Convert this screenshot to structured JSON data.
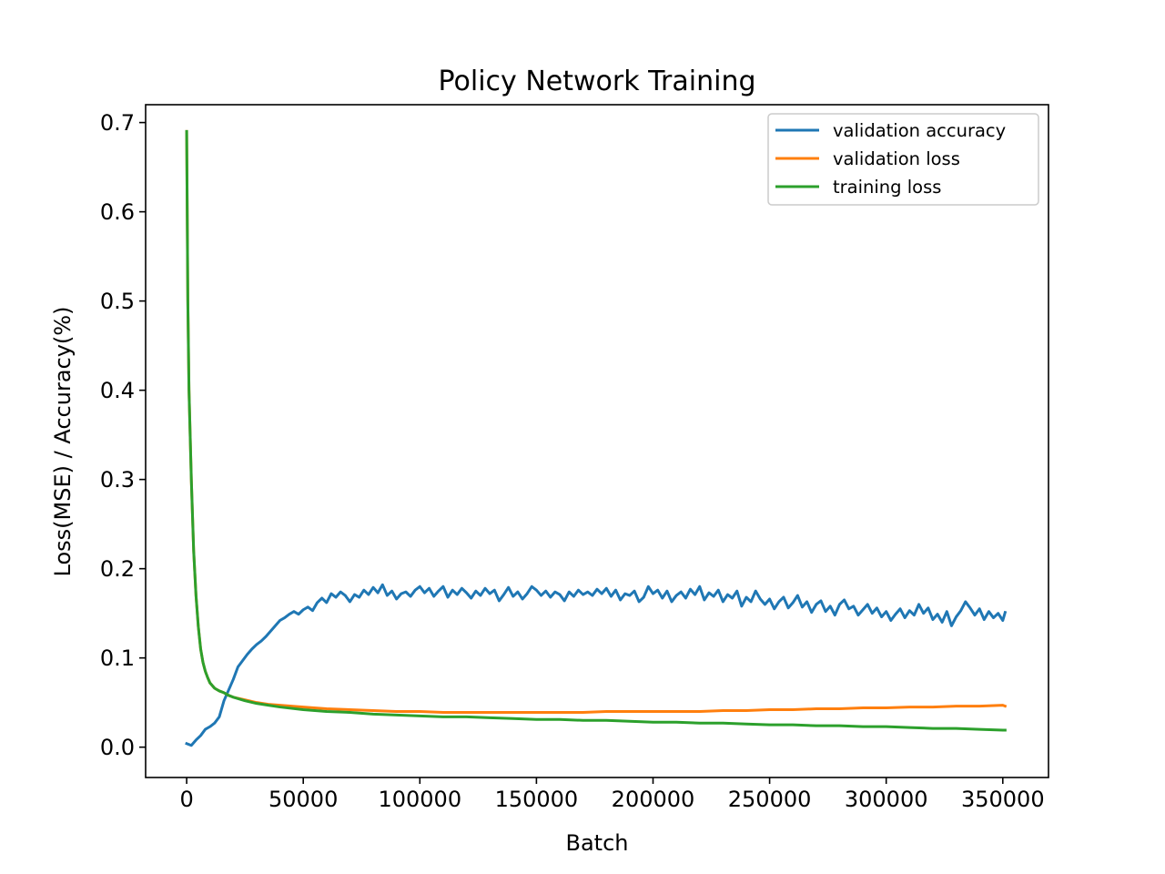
{
  "chart_data": {
    "type": "line",
    "title": "Policy Network Training",
    "xlabel": "Batch",
    "ylabel": "Loss(MSE) / Accuracy(%)",
    "xlim": [
      -17600,
      369600
    ],
    "ylim": [
      -0.034,
      0.72
    ],
    "xticks": [
      0,
      50000,
      100000,
      150000,
      200000,
      250000,
      300000,
      350000
    ],
    "xtick_labels": [
      "0",
      "50000",
      "100000",
      "150000",
      "200000",
      "250000",
      "300000",
      "350000"
    ],
    "yticks": [
      0.0,
      0.1,
      0.2,
      0.3,
      0.4,
      0.5,
      0.6,
      0.7
    ],
    "ytick_labels": [
      "0.0",
      "0.1",
      "0.2",
      "0.3",
      "0.4",
      "0.5",
      "0.6",
      "0.7"
    ],
    "grid": false,
    "legend_position": "upper right",
    "series": [
      {
        "name": "validation accuracy",
        "color": "#1f77b4",
        "x": [
          0,
          2000,
          4000,
          6000,
          8000,
          10000,
          12000,
          14000,
          16000,
          18000,
          20000,
          22000,
          24000,
          26000,
          28000,
          30000,
          32000,
          34000,
          36000,
          38000,
          40000,
          42000,
          44000,
          46000,
          48000,
          50000,
          52000,
          54000,
          56000,
          58000,
          60000,
          62000,
          64000,
          66000,
          68000,
          70000,
          72000,
          74000,
          76000,
          78000,
          80000,
          82000,
          84000,
          86000,
          88000,
          90000,
          92000,
          94000,
          96000,
          98000,
          100000,
          102000,
          104000,
          106000,
          108000,
          110000,
          112000,
          114000,
          116000,
          118000,
          120000,
          122000,
          124000,
          126000,
          128000,
          130000,
          132000,
          134000,
          136000,
          138000,
          140000,
          142000,
          144000,
          146000,
          148000,
          150000,
          152000,
          154000,
          156000,
          158000,
          160000,
          162000,
          164000,
          166000,
          168000,
          170000,
          172000,
          174000,
          176000,
          178000,
          180000,
          182000,
          184000,
          186000,
          188000,
          190000,
          192000,
          194000,
          196000,
          198000,
          200000,
          202000,
          204000,
          206000,
          208000,
          210000,
          212000,
          214000,
          216000,
          218000,
          220000,
          222000,
          224000,
          226000,
          228000,
          230000,
          232000,
          234000,
          236000,
          238000,
          240000,
          242000,
          244000,
          246000,
          248000,
          250000,
          252000,
          254000,
          256000,
          258000,
          260000,
          262000,
          264000,
          266000,
          268000,
          270000,
          272000,
          274000,
          276000,
          278000,
          280000,
          282000,
          284000,
          286000,
          288000,
          290000,
          292000,
          294000,
          296000,
          298000,
          300000,
          302000,
          304000,
          306000,
          308000,
          310000,
          312000,
          314000,
          316000,
          318000,
          320000,
          322000,
          324000,
          326000,
          328000,
          330000,
          332000,
          334000,
          336000,
          338000,
          340000,
          342000,
          344000,
          346000,
          348000,
          350000,
          351000
        ],
        "y": [
          0.004,
          0.002,
          0.008,
          0.013,
          0.02,
          0.023,
          0.027,
          0.034,
          0.052,
          0.064,
          0.076,
          0.09,
          0.097,
          0.104,
          0.11,
          0.115,
          0.119,
          0.124,
          0.13,
          0.136,
          0.142,
          0.145,
          0.149,
          0.152,
          0.149,
          0.154,
          0.157,
          0.153,
          0.162,
          0.167,
          0.162,
          0.172,
          0.168,
          0.174,
          0.17,
          0.163,
          0.171,
          0.168,
          0.176,
          0.171,
          0.179,
          0.173,
          0.182,
          0.17,
          0.175,
          0.166,
          0.172,
          0.174,
          0.169,
          0.176,
          0.18,
          0.173,
          0.178,
          0.169,
          0.175,
          0.18,
          0.168,
          0.176,
          0.171,
          0.178,
          0.173,
          0.167,
          0.175,
          0.17,
          0.178,
          0.172,
          0.176,
          0.164,
          0.171,
          0.179,
          0.169,
          0.174,
          0.166,
          0.172,
          0.18,
          0.176,
          0.17,
          0.175,
          0.168,
          0.174,
          0.171,
          0.164,
          0.174,
          0.169,
          0.176,
          0.171,
          0.174,
          0.17,
          0.177,
          0.172,
          0.178,
          0.169,
          0.176,
          0.165,
          0.172,
          0.17,
          0.175,
          0.163,
          0.168,
          0.18,
          0.172,
          0.176,
          0.167,
          0.175,
          0.163,
          0.17,
          0.174,
          0.167,
          0.177,
          0.171,
          0.18,
          0.165,
          0.173,
          0.169,
          0.176,
          0.163,
          0.171,
          0.167,
          0.175,
          0.158,
          0.168,
          0.163,
          0.175,
          0.166,
          0.16,
          0.166,
          0.155,
          0.163,
          0.168,
          0.156,
          0.162,
          0.17,
          0.157,
          0.163,
          0.151,
          0.16,
          0.164,
          0.152,
          0.158,
          0.148,
          0.16,
          0.165,
          0.155,
          0.158,
          0.148,
          0.154,
          0.16,
          0.15,
          0.156,
          0.146,
          0.152,
          0.142,
          0.149,
          0.155,
          0.145,
          0.153,
          0.148,
          0.16,
          0.15,
          0.156,
          0.143,
          0.149,
          0.14,
          0.152,
          0.136,
          0.146,
          0.153,
          0.163,
          0.156,
          0.148,
          0.155,
          0.143,
          0.152,
          0.145,
          0.15,
          0.142,
          0.151
        ]
      },
      {
        "name": "validation loss",
        "color": "#ff7f0e",
        "x": [
          0,
          500,
          1000,
          2000,
          3000,
          4000,
          5000,
          6000,
          7000,
          8000,
          9000,
          10000,
          12000,
          14000,
          16000,
          18000,
          20000,
          25000,
          30000,
          35000,
          40000,
          50000,
          60000,
          70000,
          80000,
          90000,
          100000,
          110000,
          120000,
          130000,
          140000,
          150000,
          160000,
          170000,
          180000,
          190000,
          200000,
          210000,
          220000,
          230000,
          240000,
          250000,
          260000,
          270000,
          280000,
          290000,
          300000,
          310000,
          320000,
          330000,
          340000,
          350000,
          351000
        ],
        "y": [
          0.69,
          0.5,
          0.4,
          0.3,
          0.22,
          0.17,
          0.135,
          0.11,
          0.095,
          0.085,
          0.078,
          0.072,
          0.066,
          0.063,
          0.061,
          0.058,
          0.056,
          0.053,
          0.05,
          0.048,
          0.047,
          0.045,
          0.043,
          0.042,
          0.041,
          0.04,
          0.04,
          0.039,
          0.039,
          0.039,
          0.039,
          0.039,
          0.039,
          0.039,
          0.04,
          0.04,
          0.04,
          0.04,
          0.04,
          0.041,
          0.041,
          0.042,
          0.042,
          0.043,
          0.043,
          0.044,
          0.044,
          0.045,
          0.045,
          0.046,
          0.046,
          0.047,
          0.046
        ]
      },
      {
        "name": "training loss",
        "color": "#2ca02c",
        "x": [
          0,
          500,
          1000,
          2000,
          3000,
          4000,
          5000,
          6000,
          7000,
          8000,
          9000,
          10000,
          12000,
          14000,
          16000,
          18000,
          20000,
          25000,
          30000,
          35000,
          40000,
          50000,
          60000,
          70000,
          80000,
          90000,
          100000,
          110000,
          120000,
          130000,
          140000,
          150000,
          160000,
          170000,
          180000,
          190000,
          200000,
          210000,
          220000,
          230000,
          240000,
          250000,
          260000,
          270000,
          280000,
          290000,
          300000,
          310000,
          320000,
          330000,
          340000,
          350000,
          351000
        ],
        "y": [
          0.69,
          0.5,
          0.4,
          0.3,
          0.22,
          0.17,
          0.135,
          0.11,
          0.095,
          0.085,
          0.078,
          0.072,
          0.066,
          0.063,
          0.061,
          0.058,
          0.056,
          0.052,
          0.049,
          0.047,
          0.045,
          0.042,
          0.04,
          0.039,
          0.037,
          0.036,
          0.035,
          0.034,
          0.034,
          0.033,
          0.032,
          0.031,
          0.031,
          0.03,
          0.03,
          0.029,
          0.028,
          0.028,
          0.027,
          0.027,
          0.026,
          0.025,
          0.025,
          0.024,
          0.024,
          0.023,
          0.023,
          0.022,
          0.021,
          0.021,
          0.02,
          0.019,
          0.019
        ]
      }
    ]
  }
}
